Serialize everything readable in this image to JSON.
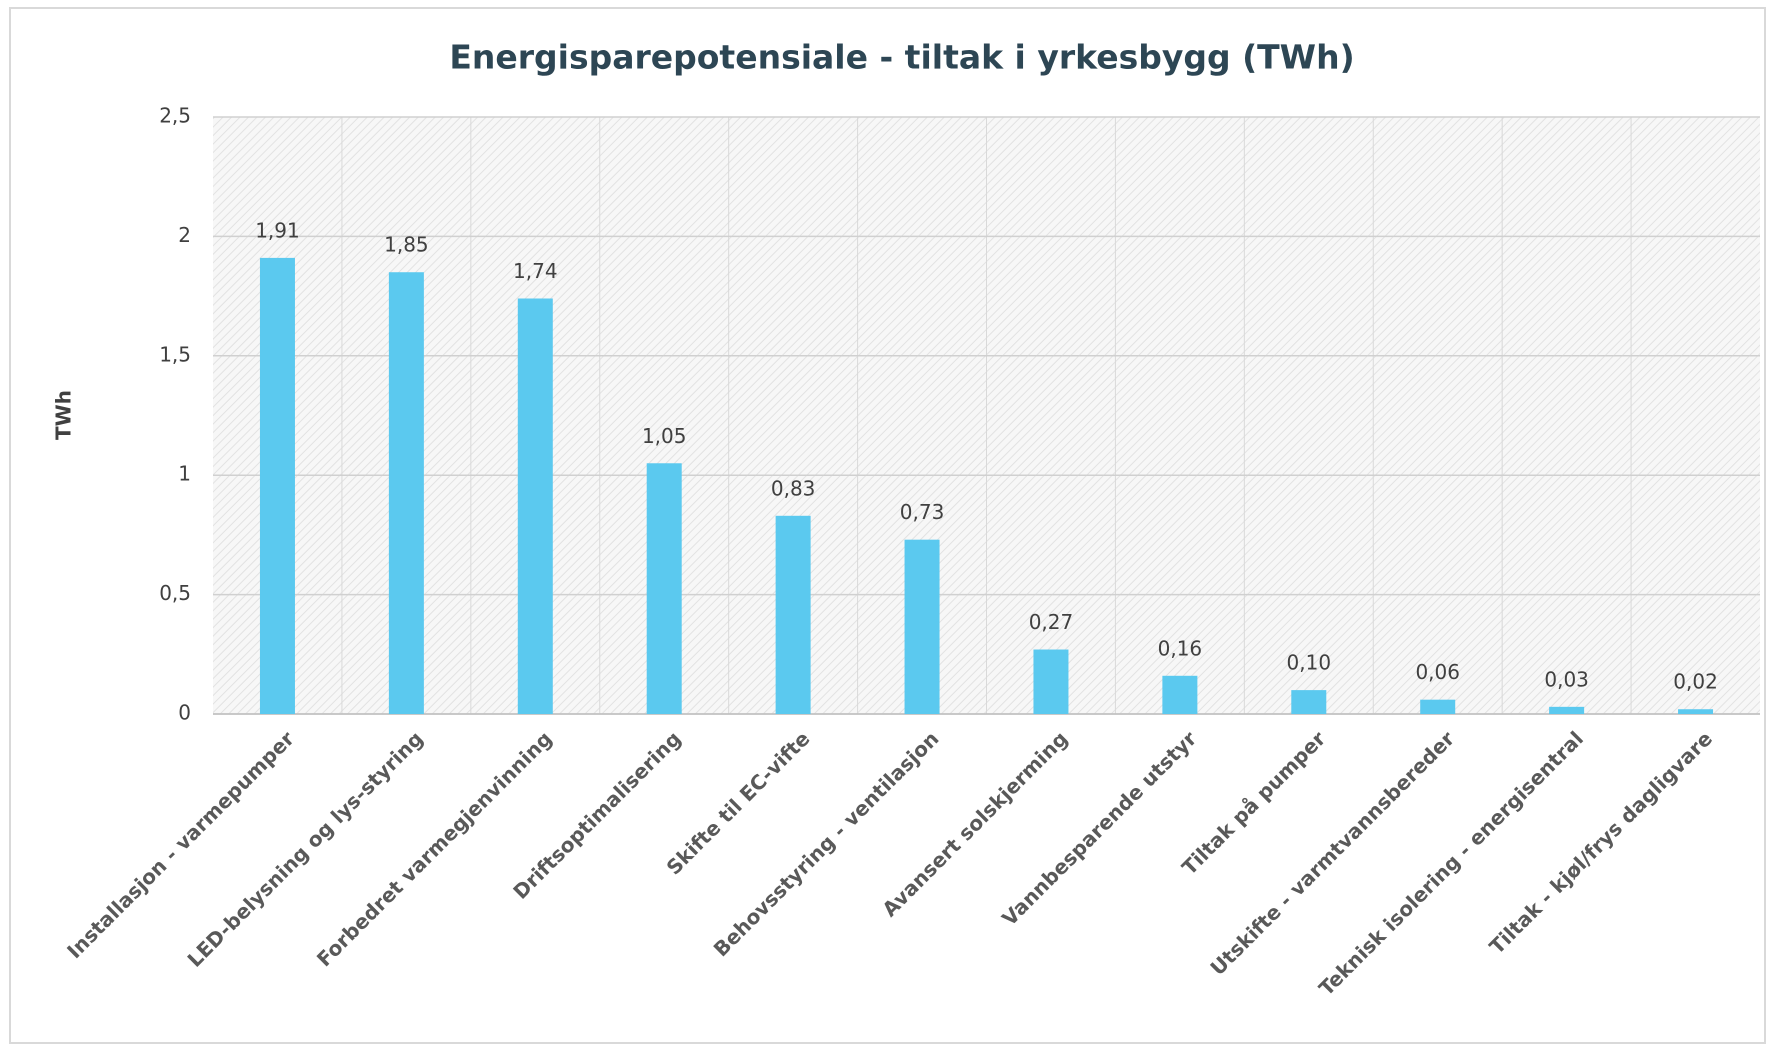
{
  "chart_data": {
    "type": "bar",
    "title": "Energisparepotensiale - tiltak i yrkesbygg (TWh)",
    "y_label": "TWh",
    "categories": [
      "Installasjon - varmepumper",
      "LED-belysning og lys-styring",
      "Forbedret varmegjenvinning",
      "Driftsoptimalisering",
      "Skifte til EC-vifte",
      "Behovsstyring - ventilasjon",
      "Avansert solskjerming",
      "Vannbesparende utstyr",
      "Tiltak på pumper",
      "Utskifte - varmtvannsbereder",
      "Teknisk isolering - energisentral",
      "Tiltak - kjøl/frys dagligvare"
    ],
    "values": [
      1.91,
      1.85,
      1.74,
      1.05,
      0.83,
      0.73,
      0.27,
      0.16,
      0.1,
      0.06,
      0.03,
      0.02
    ],
    "value_labels": [
      "1,91",
      "1,85",
      "1,74",
      "1,05",
      "0,83",
      "0,73",
      "0,27",
      "0,16",
      "0,10",
      "0,06",
      "0,03",
      "0,02"
    ],
    "color": "#5bc9ef",
    "ylim": [
      0,
      2.5
    ],
    "yticks": [
      0,
      {
        "value": 0.5,
        "label": "0,5"
      },
      1,
      {
        "value": 1.5,
        "label": "1,5"
      },
      2,
      {
        "value": 2.5,
        "label": "2,5"
      }
    ],
    "grid": true
  }
}
